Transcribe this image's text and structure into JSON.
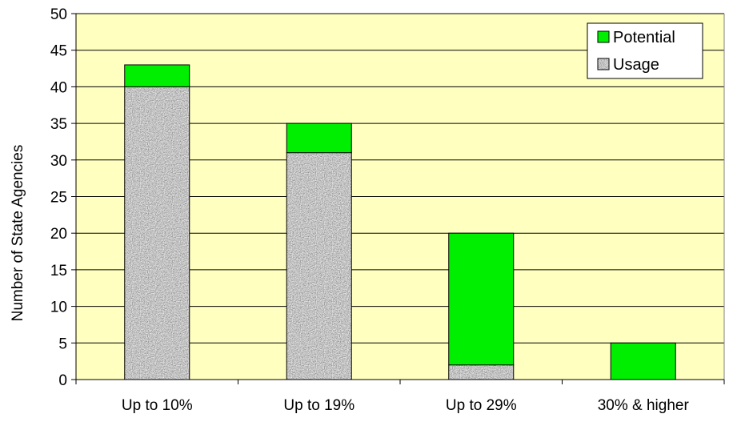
{
  "chart_data": {
    "type": "bar",
    "stacked": true,
    "categories": [
      "Up to 10%",
      "Up to 19%",
      "Up to 29%",
      "30% & higher"
    ],
    "series": [
      {
        "name": "Usage",
        "values": [
          40,
          31,
          2,
          0
        ],
        "color": "#9a9a9a",
        "pattern": "speckled-gray"
      },
      {
        "name": "Potential",
        "values": [
          3,
          4,
          18,
          5
        ],
        "color": "#00ee00"
      }
    ],
    "title": "",
    "xlabel": "",
    "ylabel": "Number of State Agencies",
    "ylim": [
      0,
      50
    ],
    "yticks": [
      0,
      5,
      10,
      15,
      20,
      25,
      30,
      35,
      40,
      45,
      50
    ],
    "grid": true,
    "plot_background": "#ffffc0",
    "legend": {
      "position": "top-right",
      "entries": [
        "Potential",
        "Usage"
      ]
    }
  }
}
